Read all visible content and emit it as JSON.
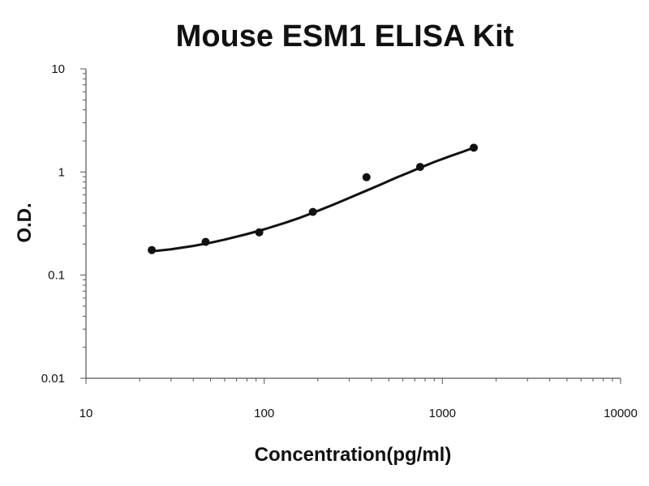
{
  "chart_data": {
    "type": "scatter",
    "title": "Mouse ESM1 ELISA Kit",
    "xlabel": "Concentration(pg/ml)",
    "ylabel": "O.D.",
    "x_scale": "log",
    "y_scale": "log",
    "xlim": [
      10,
      10000
    ],
    "ylim": [
      0.01,
      10
    ],
    "x_ticks": [
      10,
      100,
      1000,
      10000
    ],
    "x_tick_labels": [
      "10",
      "100",
      "1000",
      "10000"
    ],
    "y_ticks": [
      0.01,
      0.1,
      1,
      10
    ],
    "y_tick_labels": [
      "0.01",
      "0.1",
      "1",
      "10"
    ],
    "grid": false,
    "legend": "none",
    "series": [
      {
        "kind": "points",
        "color": "#111111",
        "x": [
          23.4,
          46.9,
          93.8,
          187.5,
          375,
          750,
          1500
        ],
        "y": [
          0.175,
          0.21,
          0.26,
          0.41,
          0.89,
          1.12,
          1.72
        ]
      },
      {
        "kind": "fit-curve",
        "color": "#111111",
        "x": [
          23.4,
          30,
          40,
          50,
          60,
          80,
          100,
          130,
          160,
          200,
          250,
          300,
          375,
          450,
          550,
          650,
          750,
          900,
          1100,
          1300,
          1500
        ],
        "y": [
          0.17,
          0.178,
          0.192,
          0.206,
          0.221,
          0.25,
          0.278,
          0.32,
          0.362,
          0.42,
          0.49,
          0.56,
          0.66,
          0.755,
          0.88,
          0.99,
          1.1,
          1.25,
          1.42,
          1.57,
          1.72
        ]
      }
    ]
  }
}
